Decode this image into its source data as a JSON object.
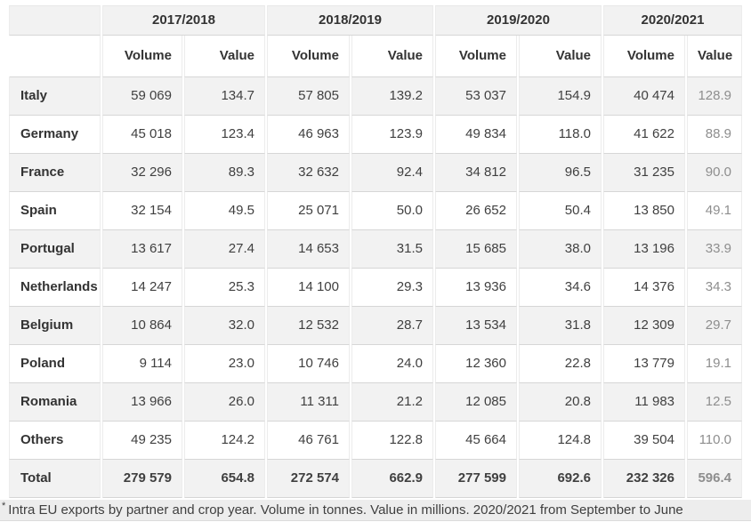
{
  "table": {
    "year_groups": [
      "2017/2018",
      "2018/2019",
      "2019/2020",
      "2020/2021"
    ],
    "subheaders": [
      "Volume",
      "Value"
    ],
    "rows": [
      {
        "label": "Italy",
        "values": [
          "59 069",
          "134.7",
          "57 805",
          "139.2",
          "53 037",
          "154.9",
          "40 474",
          "128.9"
        ],
        "total": false
      },
      {
        "label": "Germany",
        "values": [
          "45 018",
          "123.4",
          "46 963",
          "123.9",
          "49 834",
          "118.0",
          "41 622",
          "88.9"
        ],
        "total": false
      },
      {
        "label": "France",
        "values": [
          "32 296",
          "89.3",
          "32 632",
          "92.4",
          "34 812",
          "96.5",
          "31 235",
          "90.0"
        ],
        "total": false
      },
      {
        "label": "Spain",
        "values": [
          "32 154",
          "49.5",
          "25 071",
          "50.0",
          "26 652",
          "50.4",
          "13 850",
          "49.1"
        ],
        "total": false
      },
      {
        "label": "Portugal",
        "values": [
          "13 617",
          "27.4",
          "14 653",
          "31.5",
          "15 685",
          "38.0",
          "13 196",
          "33.9"
        ],
        "total": false
      },
      {
        "label": "Netherlands",
        "values": [
          "14 247",
          "25.3",
          "14 100",
          "29.3",
          "13 936",
          "34.6",
          "14 376",
          "34.3"
        ],
        "total": false
      },
      {
        "label": "Belgium",
        "values": [
          "10 864",
          "32.0",
          "12 532",
          "28.7",
          "13 534",
          "31.8",
          "12 309",
          "29.7"
        ],
        "total": false
      },
      {
        "label": "Poland",
        "values": [
          "9 114",
          "23.0",
          "10 746",
          "24.0",
          "12 360",
          "22.8",
          "13 779",
          "19.1"
        ],
        "total": false
      },
      {
        "label": "Romania",
        "values": [
          "13 966",
          "26.0",
          "11 311",
          "21.2",
          "12 085",
          "20.8",
          "11 983",
          "12.5"
        ],
        "total": false
      },
      {
        "label": "Others",
        "values": [
          "49 235",
          "124.2",
          "46 761",
          "122.8",
          "45 664",
          "124.8",
          "39 504",
          "110.0"
        ],
        "total": false
      },
      {
        "label": "Total",
        "values": [
          "279 579",
          "654.8",
          "272 574",
          "662.9",
          "277 599",
          "692.6",
          "232 326",
          "596.4"
        ],
        "total": true
      }
    ]
  },
  "footnote": {
    "marker": "*",
    "text": "Intra EU exports by partner and crop year. Volume in tonnes. Value in millions. 2020/2021 from September to June"
  },
  "colors": {
    "header-bg": "#f2f2f2",
    "stripe-bg": "#f2f2f2",
    "row-bg": "#ffffff",
    "border": "#d6d6d6",
    "side-border": "#ececec",
    "muted-text": "#8e8e8e",
    "footnote-bg": "#ededed"
  },
  "chart_data": {
    "type": "table",
    "title": "Intra EU exports by partner and crop year",
    "column_groups": [
      "2017/2018",
      "2018/2019",
      "2019/2020",
      "2020/2021"
    ],
    "measures_per_group": [
      "Volume (tonnes)",
      "Value (millions)"
    ],
    "row_labels": [
      "Italy",
      "Germany",
      "France",
      "Spain",
      "Portugal",
      "Netherlands",
      "Belgium",
      "Poland",
      "Romania",
      "Others",
      "Total"
    ],
    "rows": [
      [
        59069,
        134.7,
        57805,
        139.2,
        53037,
        154.9,
        40474,
        128.9
      ],
      [
        45018,
        123.4,
        46963,
        123.9,
        49834,
        118.0,
        41622,
        88.9
      ],
      [
        32296,
        89.3,
        32632,
        92.4,
        34812,
        96.5,
        31235,
        90.0
      ],
      [
        32154,
        49.5,
        25071,
        50.0,
        26652,
        50.4,
        13850,
        49.1
      ],
      [
        13617,
        27.4,
        14653,
        31.5,
        15685,
        38.0,
        13196,
        33.9
      ],
      [
        14247,
        25.3,
        14100,
        29.3,
        13936,
        34.6,
        14376,
        34.3
      ],
      [
        10864,
        32.0,
        12532,
        28.7,
        13534,
        31.8,
        12309,
        29.7
      ],
      [
        9114,
        23.0,
        10746,
        24.0,
        12360,
        22.8,
        13779,
        19.1
      ],
      [
        13966,
        26.0,
        11311,
        21.2,
        12085,
        20.8,
        11983,
        12.5
      ],
      [
        49235,
        124.2,
        46761,
        122.8,
        45664,
        124.8,
        39504,
        110.0
      ],
      [
        279579,
        654.8,
        272574,
        662.9,
        277599,
        692.6,
        232326,
        596.4
      ]
    ],
    "notes": "2020/2021 from September to June"
  }
}
